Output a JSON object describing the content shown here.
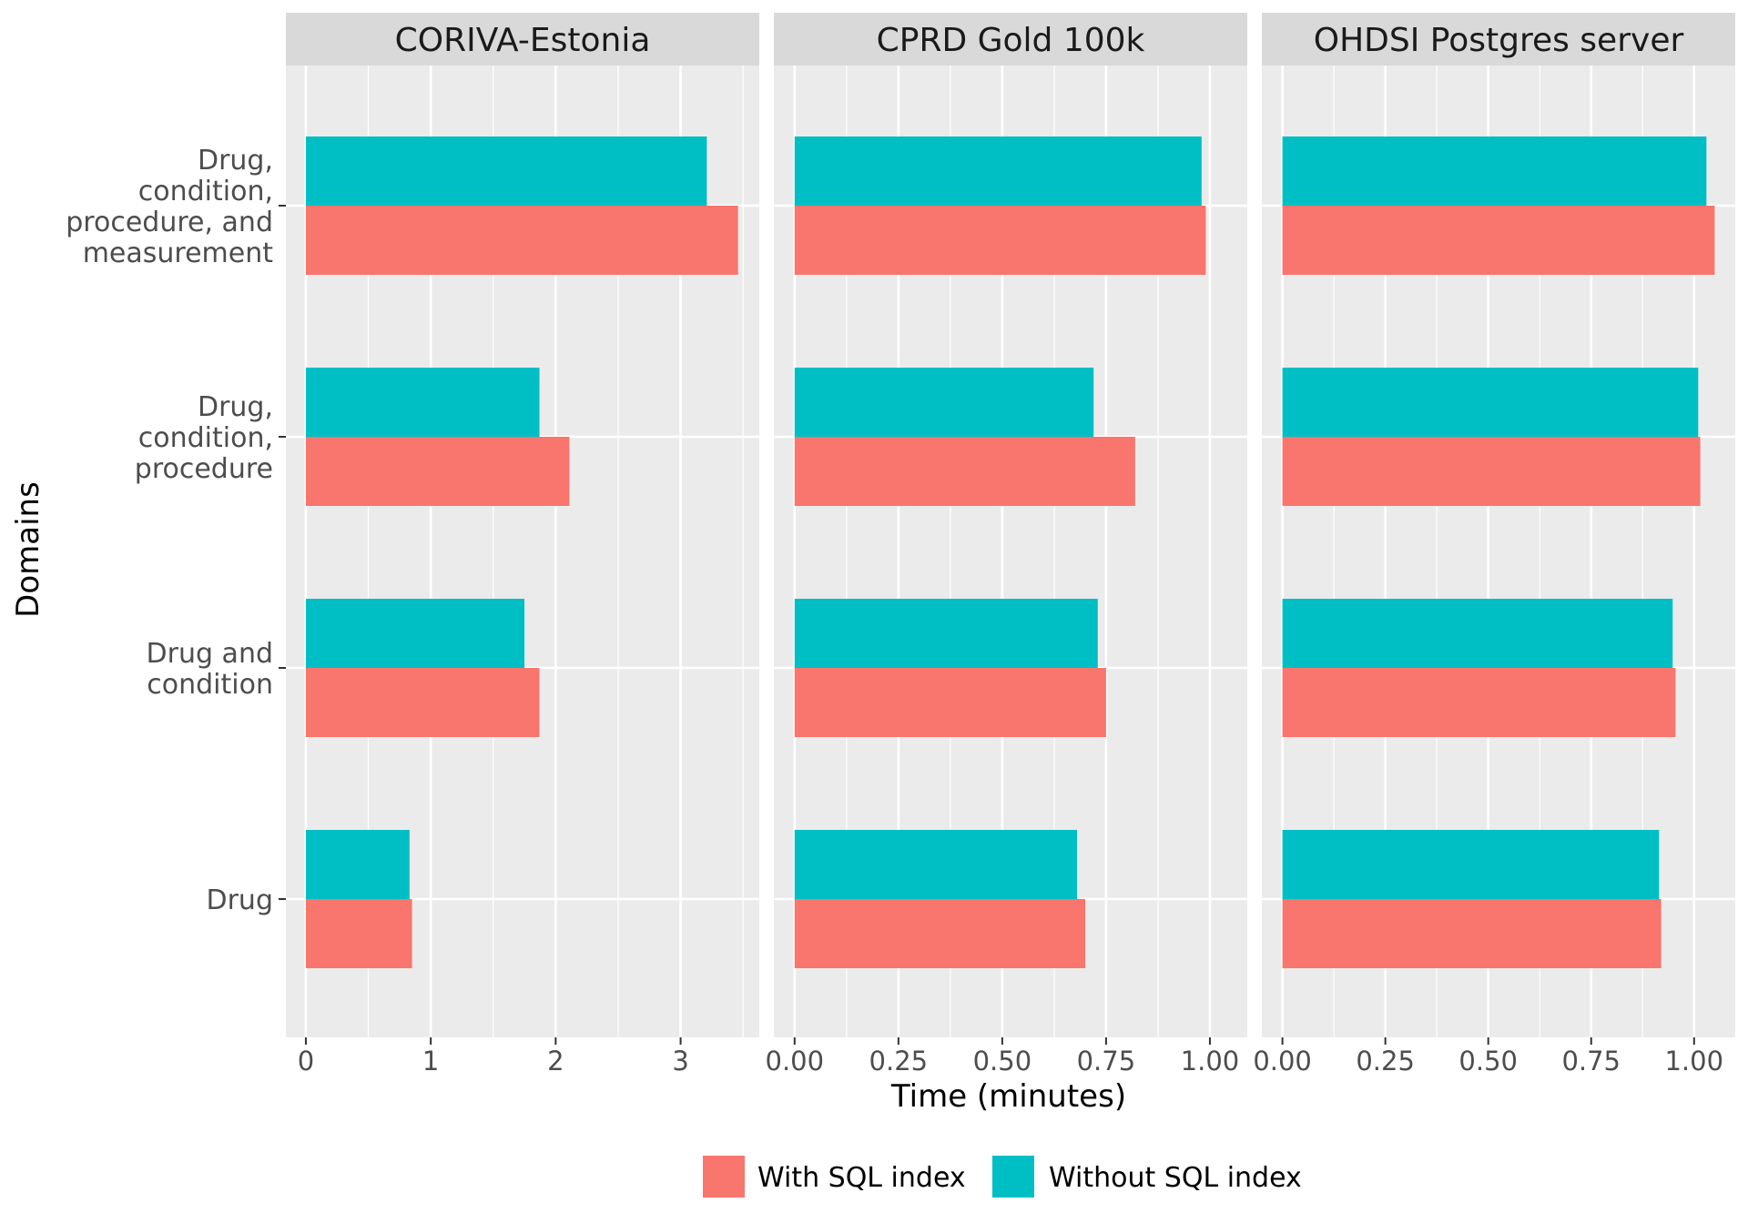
{
  "chart_data": {
    "type": "bar",
    "orientation": "horizontal",
    "xlabel": "Time (minutes)",
    "ylabel": "Domains",
    "grid": true,
    "legend_position": "bottom",
    "categories": [
      "Drug",
      "Drug and condition",
      "Drug, condition, procedure",
      "Drug, condition, procedure, and measurement"
    ],
    "category_label_lines": [
      [
        "Drug"
      ],
      [
        "Drug and",
        "condition"
      ],
      [
        "Drug,",
        "condition,",
        "procedure"
      ],
      [
        "Drug,",
        "condition,",
        "procedure, and",
        "measurement"
      ]
    ],
    "series_order": [
      "With SQL index",
      "Without SQL index"
    ],
    "colors": {
      "With SQL index": "#F8766D",
      "Without SQL index": "#00BFC4",
      "panel_bg": "#EBEBEB",
      "strip_bg": "#D9D9D9"
    },
    "panels": [
      {
        "title": "CORIVA-Estonia",
        "xlim": [
          -0.16,
          3.63
        ],
        "ticks": [
          0,
          1,
          2,
          3
        ],
        "tick_labels": [
          "0",
          "1",
          "2",
          "3"
        ],
        "series": [
          {
            "name": "With SQL index",
            "values": [
              0.85,
              1.87,
              2.11,
              3.46
            ]
          },
          {
            "name": "Without SQL index",
            "values": [
              0.83,
              1.75,
              1.87,
              3.21
            ]
          }
        ]
      },
      {
        "title": "CPRD Gold 100k",
        "xlim": [
          -0.05,
          1.09
        ],
        "ticks": [
          0,
          0.25,
          0.5,
          0.75,
          1.0
        ],
        "tick_labels": [
          "0.00",
          "0.25",
          "0.50",
          "0.75",
          "1.00"
        ],
        "series": [
          {
            "name": "With SQL index",
            "values": [
              0.7,
              0.75,
              0.82,
              0.99
            ]
          },
          {
            "name": "Without SQL index",
            "values": [
              0.68,
              0.73,
              0.72,
              0.98
            ]
          }
        ]
      },
      {
        "title": "OHDSI Postgres server",
        "xlim": [
          -0.05,
          1.1
        ],
        "ticks": [
          0,
          0.25,
          0.5,
          0.75,
          1.0
        ],
        "tick_labels": [
          "0.00",
          "0.25",
          "0.50",
          "0.75",
          "1.00"
        ],
        "series": [
          {
            "name": "With SQL index",
            "values": [
              0.92,
              0.955,
              1.015,
              1.05
            ]
          },
          {
            "name": "Without SQL index",
            "values": [
              0.915,
              0.948,
              1.01,
              1.03
            ]
          }
        ]
      }
    ],
    "legend": [
      {
        "name": "With SQL index",
        "color": "#F8766D"
      },
      {
        "name": "Without SQL index",
        "color": "#00BFC4"
      }
    ]
  }
}
